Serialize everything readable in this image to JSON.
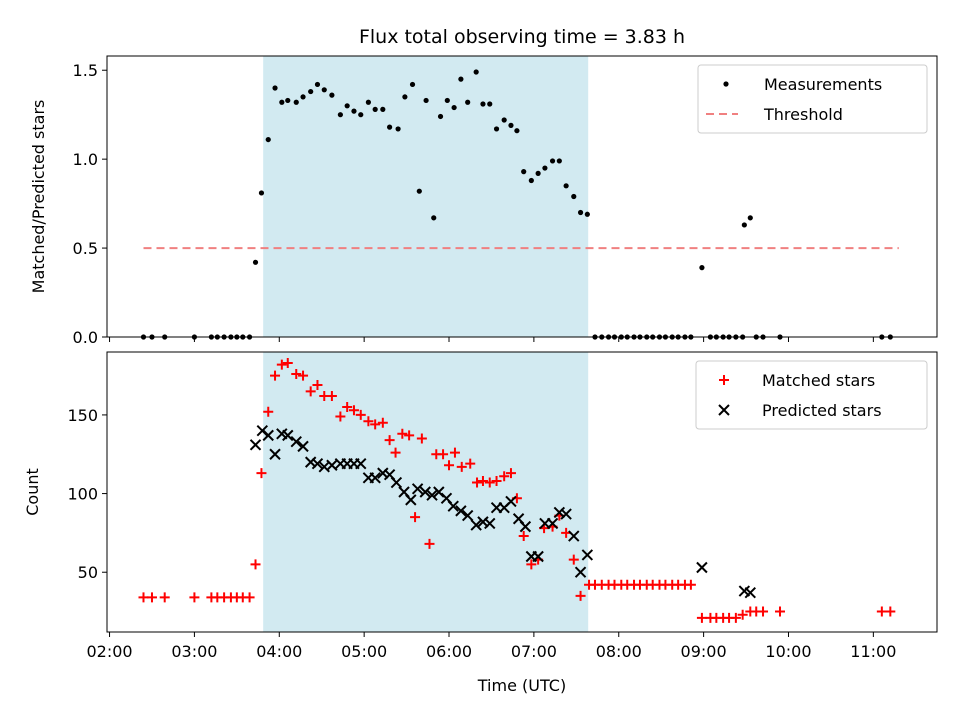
{
  "chart_data": {
    "type": "scatter",
    "title": "Flux total observing time = 3.83 h",
    "xlabel": "Time (UTC)",
    "x_ticks": [
      "02:00",
      "03:00",
      "04:00",
      "05:00",
      "06:00",
      "07:00",
      "08:00",
      "09:00",
      "10:00",
      "11:00"
    ],
    "x_tick_hours": [
      2,
      3,
      4,
      5,
      6,
      7,
      8,
      9,
      10,
      11
    ],
    "xlim_hours": [
      1.97,
      11.75
    ],
    "shaded_interval_hours": [
      3.81,
      7.64
    ],
    "shade_color": "#add8e6",
    "panels": [
      {
        "ylabel": "Matched/Predicted stars",
        "ylim": [
          0,
          1.58
        ],
        "y_ticks": [
          0.0,
          0.5,
          1.0,
          1.5
        ],
        "y_tick_labels": [
          "0.0",
          "0.5",
          "1.0",
          "1.5"
        ],
        "legend_position": "top-right",
        "threshold": {
          "name": "Threshold",
          "value": 0.5,
          "x_range_hours": [
            2.4,
            11.3
          ],
          "color": "#f08080"
        },
        "series": [
          {
            "name": "Measurements",
            "color": "#000000",
            "marker": "dot",
            "points": [
              [
                2.4,
                0
              ],
              [
                2.5,
                0
              ],
              [
                2.65,
                0
              ],
              [
                3.0,
                0
              ],
              [
                3.2,
                0
              ],
              [
                3.27,
                0
              ],
              [
                3.35,
                0
              ],
              [
                3.43,
                0
              ],
              [
                3.5,
                0
              ],
              [
                3.57,
                0
              ],
              [
                3.65,
                0
              ],
              [
                3.72,
                0.42
              ],
              [
                3.79,
                0.81
              ],
              [
                3.87,
                1.11
              ],
              [
                3.95,
                1.4
              ],
              [
                4.03,
                1.32
              ],
              [
                4.1,
                1.33
              ],
              [
                4.2,
                1.32
              ],
              [
                4.28,
                1.35
              ],
              [
                4.37,
                1.38
              ],
              [
                4.45,
                1.42
              ],
              [
                4.53,
                1.39
              ],
              [
                4.62,
                1.36
              ],
              [
                4.72,
                1.25
              ],
              [
                4.8,
                1.3
              ],
              [
                4.88,
                1.27
              ],
              [
                4.96,
                1.25
              ],
              [
                5.05,
                1.32
              ],
              [
                5.13,
                1.28
              ],
              [
                5.22,
                1.28
              ],
              [
                5.3,
                1.18
              ],
              [
                5.4,
                1.17
              ],
              [
                5.48,
                1.35
              ],
              [
                5.57,
                1.42
              ],
              [
                5.65,
                0.82
              ],
              [
                5.73,
                1.33
              ],
              [
                5.82,
                0.67
              ],
              [
                5.9,
                1.24
              ],
              [
                5.98,
                1.33
              ],
              [
                6.06,
                1.29
              ],
              [
                6.14,
                1.45
              ],
              [
                6.22,
                1.32
              ],
              [
                6.32,
                1.49
              ],
              [
                6.4,
                1.31
              ],
              [
                6.48,
                1.31
              ],
              [
                6.56,
                1.17
              ],
              [
                6.65,
                1.22
              ],
              [
                6.73,
                1.19
              ],
              [
                6.8,
                1.16
              ],
              [
                6.88,
                0.93
              ],
              [
                6.97,
                0.88
              ],
              [
                7.05,
                0.92
              ],
              [
                7.13,
                0.95
              ],
              [
                7.22,
                0.99
              ],
              [
                7.3,
                0.99
              ],
              [
                7.38,
                0.85
              ],
              [
                7.47,
                0.79
              ],
              [
                7.55,
                0.7
              ],
              [
                7.63,
                0.69
              ],
              [
                7.72,
                0
              ],
              [
                7.8,
                0
              ],
              [
                7.88,
                0
              ],
              [
                7.95,
                0
              ],
              [
                8.03,
                0
              ],
              [
                8.1,
                0
              ],
              [
                8.18,
                0
              ],
              [
                8.25,
                0
              ],
              [
                8.33,
                0
              ],
              [
                8.4,
                0
              ],
              [
                8.48,
                0
              ],
              [
                8.55,
                0
              ],
              [
                8.63,
                0
              ],
              [
                8.7,
                0
              ],
              [
                8.78,
                0
              ],
              [
                8.85,
                0
              ],
              [
                8.98,
                0.39
              ],
              [
                9.08,
                0
              ],
              [
                9.15,
                0
              ],
              [
                9.23,
                0
              ],
              [
                9.3,
                0
              ],
              [
                9.38,
                0
              ],
              [
                9.46,
                0
              ],
              [
                9.48,
                0.63
              ],
              [
                9.55,
                0.67
              ],
              [
                9.62,
                0
              ],
              [
                9.7,
                0
              ],
              [
                9.9,
                0
              ],
              [
                11.1,
                0
              ],
              [
                11.2,
                0
              ]
            ]
          }
        ]
      },
      {
        "ylabel": "Count",
        "ylim": [
          12,
          190
        ],
        "y_ticks": [
          50,
          100,
          150
        ],
        "y_tick_labels": [
          "50",
          "100",
          "150"
        ],
        "legend_position": "top-right",
        "series": [
          {
            "name": "Matched stars",
            "color": "#ff0000",
            "marker": "plus",
            "points": [
              [
                2.4,
                34
              ],
              [
                2.5,
                34
              ],
              [
                2.65,
                34
              ],
              [
                3.0,
                34
              ],
              [
                3.2,
                34
              ],
              [
                3.27,
                34
              ],
              [
                3.35,
                34
              ],
              [
                3.43,
                34
              ],
              [
                3.5,
                34
              ],
              [
                3.57,
                34
              ],
              [
                3.65,
                34
              ],
              [
                3.72,
                55
              ],
              [
                3.79,
                113
              ],
              [
                3.87,
                152
              ],
              [
                3.95,
                175
              ],
              [
                4.03,
                182
              ],
              [
                4.1,
                183
              ],
              [
                4.2,
                176
              ],
              [
                4.28,
                175
              ],
              [
                4.37,
                165
              ],
              [
                4.45,
                169
              ],
              [
                4.53,
                162
              ],
              [
                4.62,
                162
              ],
              [
                4.72,
                149
              ],
              [
                4.8,
                155
              ],
              [
                4.88,
                153
              ],
              [
                4.96,
                150
              ],
              [
                5.05,
                146
              ],
              [
                5.13,
                144
              ],
              [
                5.22,
                145
              ],
              [
                5.3,
                134
              ],
              [
                5.37,
                126
              ],
              [
                5.45,
                138
              ],
              [
                5.53,
                137
              ],
              [
                5.6,
                85
              ],
              [
                5.68,
                135
              ],
              [
                5.77,
                68
              ],
              [
                5.85,
                125
              ],
              [
                5.93,
                125
              ],
              [
                6.0,
                118
              ],
              [
                6.07,
                126
              ],
              [
                6.15,
                117
              ],
              [
                6.25,
                119
              ],
              [
                6.33,
                107
              ],
              [
                6.4,
                108
              ],
              [
                6.48,
                107
              ],
              [
                6.56,
                108
              ],
              [
                6.65,
                111
              ],
              [
                6.73,
                113
              ],
              [
                6.8,
                97
              ],
              [
                6.88,
                73
              ],
              [
                6.97,
                55
              ],
              [
                7.05,
                58
              ],
              [
                7.12,
                78
              ],
              [
                7.22,
                79
              ],
              [
                7.3,
                86
              ],
              [
                7.38,
                75
              ],
              [
                7.47,
                58
              ],
              [
                7.55,
                35
              ],
              [
                7.65,
                42
              ],
              [
                7.72,
                42
              ],
              [
                7.8,
                42
              ],
              [
                7.88,
                42
              ],
              [
                7.95,
                42
              ],
              [
                8.03,
                42
              ],
              [
                8.1,
                42
              ],
              [
                8.18,
                42
              ],
              [
                8.25,
                42
              ],
              [
                8.33,
                42
              ],
              [
                8.4,
                42
              ],
              [
                8.48,
                42
              ],
              [
                8.55,
                42
              ],
              [
                8.63,
                42
              ],
              [
                8.7,
                42
              ],
              [
                8.78,
                42
              ],
              [
                8.85,
                42
              ],
              [
                8.98,
                21
              ],
              [
                9.08,
                21
              ],
              [
                9.15,
                21
              ],
              [
                9.23,
                21
              ],
              [
                9.3,
                21
              ],
              [
                9.38,
                21
              ],
              [
                9.46,
                23
              ],
              [
                9.55,
                25
              ],
              [
                9.62,
                25
              ],
              [
                9.7,
                25
              ],
              [
                9.9,
                25
              ],
              [
                11.1,
                25
              ],
              [
                11.2,
                25
              ]
            ]
          },
          {
            "name": "Predicted stars",
            "color": "#000000",
            "marker": "x",
            "points": [
              [
                3.72,
                131
              ],
              [
                3.8,
                140
              ],
              [
                3.87,
                137
              ],
              [
                3.95,
                125
              ],
              [
                4.03,
                138
              ],
              [
                4.1,
                137
              ],
              [
                4.2,
                133
              ],
              [
                4.28,
                130
              ],
              [
                4.37,
                120
              ],
              [
                4.45,
                119
              ],
              [
                4.53,
                117
              ],
              [
                4.62,
                118
              ],
              [
                4.72,
                119
              ],
              [
                4.8,
                119
              ],
              [
                4.88,
                119
              ],
              [
                4.96,
                119
              ],
              [
                5.05,
                110
              ],
              [
                5.13,
                110
              ],
              [
                5.22,
                113
              ],
              [
                5.3,
                112
              ],
              [
                5.38,
                107
              ],
              [
                5.47,
                101
              ],
              [
                5.55,
                96
              ],
              [
                5.63,
                103
              ],
              [
                5.72,
                101
              ],
              [
                5.8,
                99
              ],
              [
                5.88,
                101
              ],
              [
                5.97,
                97
              ],
              [
                6.05,
                92
              ],
              [
                6.14,
                89
              ],
              [
                6.22,
                86
              ],
              [
                6.32,
                80
              ],
              [
                6.4,
                82
              ],
              [
                6.48,
                81
              ],
              [
                6.56,
                91
              ],
              [
                6.65,
                91
              ],
              [
                6.73,
                95
              ],
              [
                6.82,
                84
              ],
              [
                6.9,
                79
              ],
              [
                6.97,
                60
              ],
              [
                7.05,
                60
              ],
              [
                7.13,
                81
              ],
              [
                7.22,
                81
              ],
              [
                7.3,
                88
              ],
              [
                7.38,
                87
              ],
              [
                7.47,
                73
              ],
              [
                7.55,
                50
              ],
              [
                7.63,
                61
              ],
              [
                8.98,
                53
              ],
              [
                9.48,
                38
              ],
              [
                9.55,
                37
              ]
            ]
          }
        ]
      }
    ]
  }
}
